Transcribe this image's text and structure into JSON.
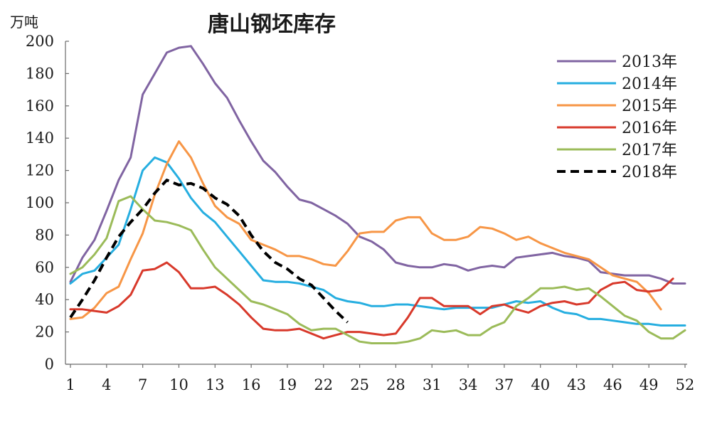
{
  "chart_data": {
    "type": "line",
    "title": "唐山钢坯库存",
    "ylabel": "万吨",
    "xlabel": "",
    "ylim": [
      0,
      200
    ],
    "y_ticks": [
      "0",
      "20",
      "40",
      "60",
      "80",
      "100",
      "120",
      "140",
      "160",
      "180",
      "200"
    ],
    "y_tick_values": [
      0,
      20,
      40,
      60,
      80,
      100,
      120,
      140,
      160,
      180,
      200
    ],
    "xlim": [
      1,
      52
    ],
    "x_ticks": [
      "1",
      "4",
      "7",
      "10",
      "13",
      "16",
      "19",
      "22",
      "25",
      "28",
      "31",
      "34",
      "37",
      "40",
      "43",
      "46",
      "49",
      "52"
    ],
    "x_tick_values": [
      1,
      4,
      7,
      10,
      13,
      16,
      19,
      22,
      25,
      28,
      31,
      34,
      37,
      40,
      43,
      46,
      49,
      52
    ],
    "grid": false,
    "legend_position": "top-right",
    "series": [
      {
        "name": "2013年",
        "color": "#8064a2",
        "dash": "solid",
        "values": [
          51,
          66,
          77,
          95,
          114,
          128,
          167,
          180,
          193,
          196,
          197,
          186,
          174,
          165,
          151,
          138,
          126,
          119,
          110,
          102,
          100,
          96,
          92,
          87,
          79,
          76,
          71,
          63,
          61,
          60,
          60,
          62,
          61,
          58,
          60,
          61,
          60,
          66,
          67,
          68,
          69,
          67,
          66,
          64,
          57,
          56,
          55,
          55,
          55,
          53,
          50,
          50
        ]
      },
      {
        "name": "2014年",
        "color": "#26aee0",
        "dash": "solid",
        "values": [
          50,
          56,
          58,
          66,
          74,
          96,
          120,
          128,
          125,
          115,
          103,
          94,
          88,
          79,
          70,
          61,
          52,
          51,
          51,
          50,
          48,
          46,
          41,
          39,
          38,
          36,
          36,
          37,
          37,
          36,
          35,
          34,
          35,
          35,
          35,
          35,
          37,
          39,
          38,
          39,
          35,
          32,
          31,
          28,
          28,
          27,
          26,
          25,
          25,
          24,
          24,
          24
        ]
      },
      {
        "name": "2015年",
        "color": "#f79646",
        "dash": "solid",
        "values": [
          28,
          29,
          35,
          44,
          48,
          65,
          81,
          105,
          124,
          138,
          128,
          112,
          98,
          91,
          87,
          77,
          74,
          71,
          67,
          67,
          65,
          62,
          61,
          70,
          81,
          82,
          82,
          89,
          91,
          91,
          81,
          77,
          77,
          79,
          85,
          84,
          81,
          77,
          79,
          75,
          72,
          69,
          67,
          65,
          60,
          55,
          53,
          51,
          44,
          34
        ]
      },
      {
        "name": "2016年",
        "color": "#d8392b",
        "dash": "solid",
        "values": [
          34,
          34,
          33,
          32,
          36,
          43,
          58,
          59,
          63,
          57,
          47,
          47,
          48,
          43,
          37,
          29,
          22,
          21,
          21,
          22,
          19,
          16,
          18,
          20,
          20,
          19,
          18,
          19,
          29,
          41,
          41,
          36,
          36,
          36,
          31,
          36,
          37,
          34,
          32,
          36,
          38,
          39,
          37,
          38,
          46,
          50,
          51,
          46,
          45,
          46,
          53
        ]
      },
      {
        "name": "2017年",
        "color": "#9bbb59",
        "dash": "solid",
        "values": [
          56,
          60,
          68,
          78,
          101,
          104,
          96,
          89,
          88,
          86,
          83,
          71,
          60,
          53,
          46,
          39,
          37,
          34,
          31,
          25,
          21,
          22,
          22,
          18,
          14,
          13,
          13,
          13,
          14,
          16,
          21,
          20,
          21,
          18,
          18,
          23,
          26,
          36,
          41,
          47,
          47,
          48,
          46,
          47,
          42,
          36,
          30,
          27,
          20,
          16,
          16,
          21
        ]
      },
      {
        "name": "2018年",
        "color": "#000000",
        "dash": "dashed",
        "values": [
          29,
          40,
          52,
          66,
          79,
          88,
          96,
          106,
          114,
          111,
          112,
          109,
          103,
          99,
          92,
          80,
          70,
          63,
          59,
          53,
          49,
          41,
          33,
          26
        ]
      }
    ]
  }
}
